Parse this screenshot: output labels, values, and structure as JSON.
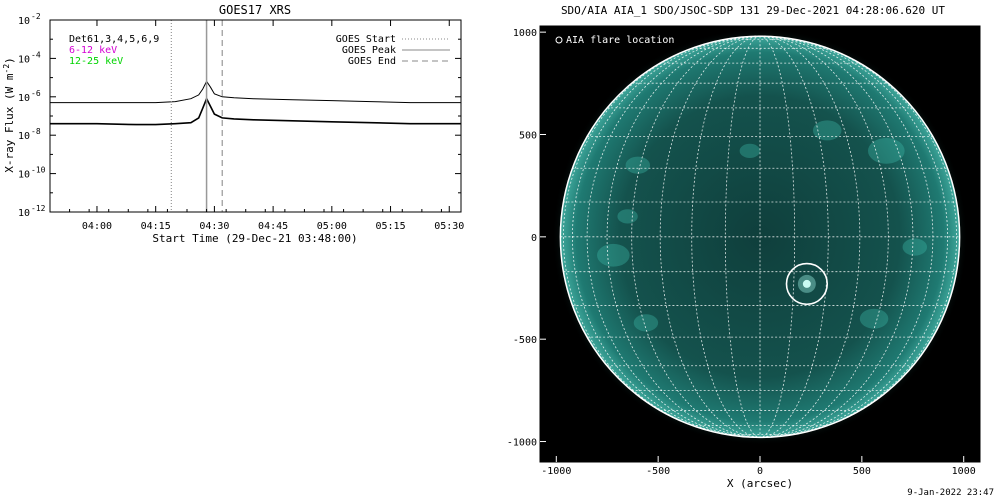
{
  "chart_data": [
    {
      "type": "line",
      "title": "GOES17 XRS",
      "xlabel": "Start Time (29-Dec-21 03:48:00)",
      "ylabel": "X-ray Flux (W m",
      "ylabel_sup": "-2",
      "ylabel_close": ")",
      "y_log": true,
      "x_ticks": [
        "04:00",
        "04:15",
        "04:30",
        "04:45",
        "05:00",
        "05:15",
        "05:30"
      ],
      "y_ticks": [
        {
          "base": "10",
          "exp": "-2"
        },
        {
          "base": "10",
          "exp": "-4"
        },
        {
          "base": "10",
          "exp": "-6"
        },
        {
          "base": "10",
          "exp": "-8"
        },
        {
          "base": "10",
          "exp": "-10"
        },
        {
          "base": "10",
          "exp": "-12"
        }
      ],
      "legend_left": {
        "detectors": "Det61,3,4,5,6,9",
        "entries": [
          {
            "name": "6-12 keV",
            "color": "#d400d4"
          },
          {
            "name": "12-25 keV",
            "color": "#00d400"
          }
        ]
      },
      "legend_right": [
        {
          "name": "GOES Start",
          "style": "dotted"
        },
        {
          "name": "GOES Peak",
          "style": "solid"
        },
        {
          "name": "GOES End",
          "style": "dashed"
        }
      ],
      "xlim": [
        "03:48",
        "05:33"
      ],
      "ylim_log10": [
        -12,
        -2
      ],
      "markers": {
        "start": "04:19",
        "peak": "04:28",
        "end": "04:32"
      },
      "series": [
        {
          "color": "#000000",
          "x": [
            "03:48",
            "04:00",
            "04:10",
            "04:15",
            "04:20",
            "04:24",
            "04:26",
            "04:27",
            "04:28",
            "04:29",
            "04:30",
            "04:32",
            "04:35",
            "04:40",
            "04:50",
            "05:00",
            "05:10",
            "05:20",
            "05:33"
          ],
          "log10_y": [
            -6.3,
            -6.3,
            -6.3,
            -6.3,
            -6.25,
            -6.1,
            -5.9,
            -5.6,
            -5.2,
            -5.5,
            -5.85,
            -6.0,
            -6.05,
            -6.1,
            -6.15,
            -6.2,
            -6.25,
            -6.3,
            -6.3
          ]
        },
        {
          "color": "#000000",
          "x": [
            "03:48",
            "04:00",
            "04:10",
            "04:15",
            "04:20",
            "04:24",
            "04:26",
            "04:27",
            "04:28",
            "04:29",
            "04:30",
            "04:32",
            "04:35",
            "04:40",
            "04:50",
            "05:00",
            "05:10",
            "05:20",
            "05:33"
          ],
          "log10_y": [
            -7.4,
            -7.4,
            -7.45,
            -7.45,
            -7.4,
            -7.35,
            -7.1,
            -6.6,
            -6.1,
            -6.5,
            -6.9,
            -7.1,
            -7.15,
            -7.2,
            -7.25,
            -7.3,
            -7.35,
            -7.4,
            -7.4
          ]
        }
      ],
      "grid": false
    },
    {
      "type": "image",
      "title": "SDO/AIA AIA_1 SDO/JSOC-SDP 131 29-Dec-2021 04:28:06.620 UT",
      "xlabel": "X (arcsec)",
      "legend": "AIA flare location",
      "x_ticks": [
        -1000,
        -500,
        0,
        500,
        1000
      ],
      "y_ticks": [
        1000,
        500,
        0,
        -500,
        -1000
      ],
      "xlim": [
        -1080,
        1080
      ],
      "ylim": [
        -1100,
        1030
      ],
      "solar_radius": 980,
      "flare_location": [
        230,
        -230
      ],
      "flare_circle_radius": 100,
      "grid_step_deg": 10,
      "disk_color": "#1f7a72",
      "grid_color": "#ffffff"
    }
  ],
  "footer": {
    "timestamp": "9-Jan-2022 23:47"
  }
}
